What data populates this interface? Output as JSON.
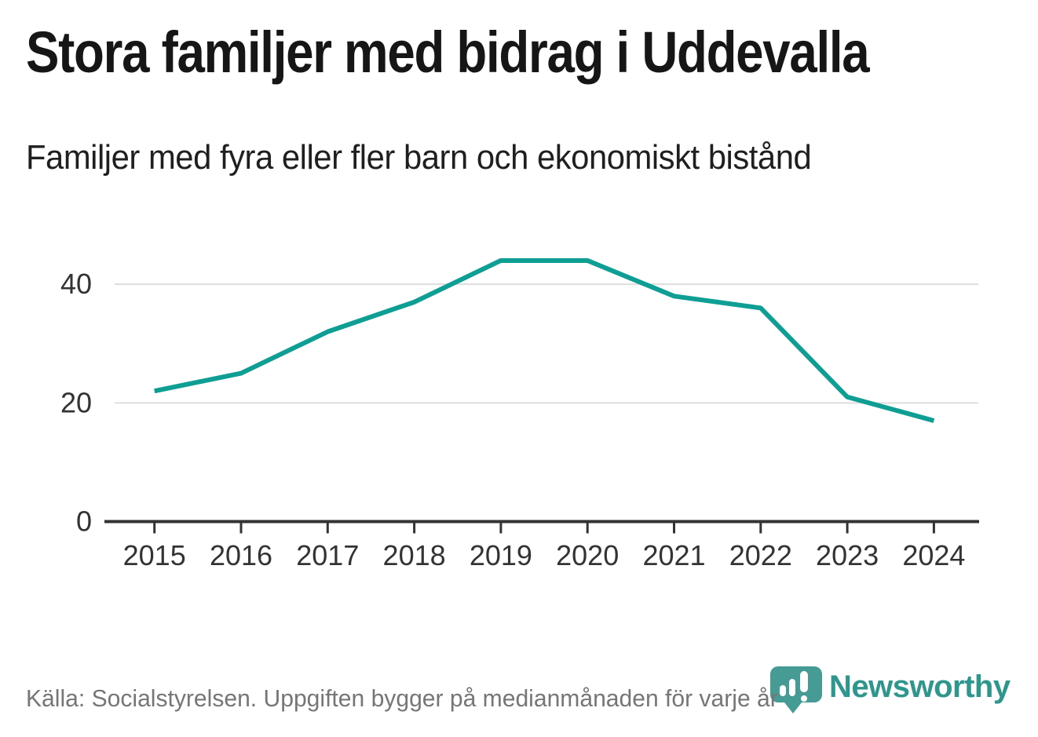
{
  "header": {
    "title": "Stora familjer med bidrag i Uddevalla",
    "subtitle": "Familjer med fyra eller fler barn och ekonomiskt bistånd"
  },
  "chart_data": {
    "type": "line",
    "title": "Stora familjer med bidrag i Uddevalla",
    "subtitle": "Familjer med fyra eller fler barn och ekonomiskt bistånd",
    "x": [
      2015,
      2016,
      2017,
      2018,
      2019,
      2020,
      2021,
      2022,
      2023,
      2024
    ],
    "series": [
      {
        "name": "Familjer med fyra eller fler barn och ekonomiskt bistånd",
        "values": [
          22,
          25,
          32,
          37,
          44,
          44,
          38,
          36,
          21,
          17
        ]
      }
    ],
    "xlabel": "",
    "ylabel": "",
    "ylim": [
      0,
      47
    ],
    "yticks": [
      0,
      20,
      40
    ],
    "grid": "horizontal-only",
    "legend": "none",
    "line_color": "#0f9e94",
    "gridline_color": "#dddddd",
    "axis_color": "#333333",
    "tick_label_color": "#333333"
  },
  "footer": {
    "source": "Källa: Socialstyrelsen. Uppgiften bygger på medianmånaden för varje år"
  },
  "logo": {
    "wordmark": "Newsworthy",
    "badge_icon": "newsworthy-speech-bubble-bars-icon",
    "badge_color": "#469b94",
    "wordmark_color": "#2f968e"
  }
}
